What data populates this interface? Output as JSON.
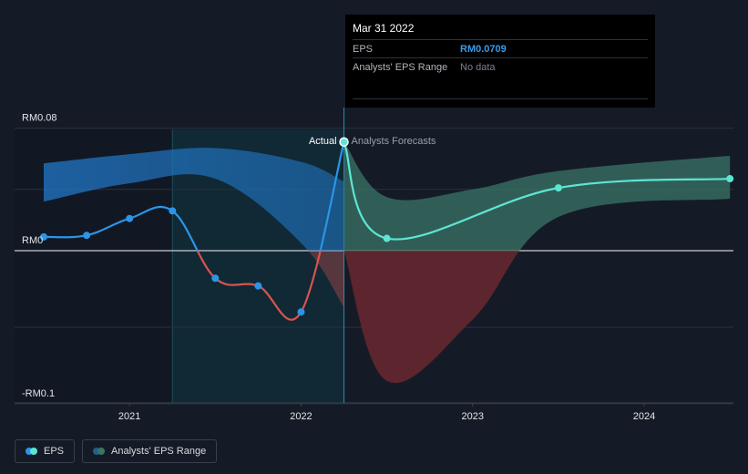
{
  "colors": {
    "background": "#151b26",
    "eps_actual": "#2b95e8",
    "eps_negative": "#d9534f",
    "eps_forecast": "#5ce6d2",
    "actual_band": "#2178c9",
    "forecast_band_pos": "#3a7568",
    "forecast_band_neg": "#6a2730",
    "past_shade": "#0d4a5a"
  },
  "tooltip": {
    "date": "Mar 31 2022",
    "rows": [
      {
        "label": "EPS",
        "value": "RM0.0709"
      },
      {
        "label": "Analysts' EPS Range",
        "value": "No data"
      }
    ]
  },
  "legend": [
    {
      "label": "EPS",
      "icon": "eps-dots-icon"
    },
    {
      "label": "Analysts' EPS Range",
      "icon": "range-dots-icon"
    }
  ],
  "chart_data": {
    "type": "line",
    "y_unit": "RM",
    "yticks": [
      {
        "value": 0.08,
        "label": "RM0.08"
      },
      {
        "value": 0,
        "label": "RM0"
      },
      {
        "value": -0.1,
        "label": "-RM0.1"
      }
    ],
    "xticks": [
      {
        "value": 2021,
        "label": "2021"
      },
      {
        "value": 2022,
        "label": "2022"
      },
      {
        "value": 2023,
        "label": "2023"
      },
      {
        "value": 2024,
        "label": "2024"
      }
    ],
    "xlim": [
      2020.35,
      2024.5
    ],
    "ylim": [
      -0.1,
      0.08
    ],
    "grid": true,
    "divider_x": 2022.25,
    "highlight_start": 2021.25,
    "labels": {
      "actual": "Actual",
      "forecast": "Analysts Forecasts"
    },
    "series": [
      {
        "name": "EPS",
        "kind": "actual",
        "x": [
          2020.5,
          2020.75,
          2021.0,
          2021.25,
          2021.5,
          2021.75,
          2022.0,
          2022.25
        ],
        "y": [
          0.009,
          0.01,
          0.021,
          0.026,
          -0.018,
          -0.023,
          -0.04,
          0.071
        ]
      },
      {
        "name": "EPS",
        "kind": "forecast",
        "x": [
          2022.25,
          2022.5,
          2023.5,
          2024.5
        ],
        "y": [
          0.071,
          0.008,
          0.041,
          0.047
        ]
      }
    ],
    "bands": [
      {
        "kind": "actual",
        "x": [
          2020.5,
          2021.0,
          2021.5,
          2022.0,
          2022.25
        ],
        "upper": [
          0.057,
          0.063,
          0.067,
          0.058,
          0.045
        ],
        "lower": [
          0.032,
          0.044,
          0.047,
          0.005,
          -0.037
        ]
      },
      {
        "kind": "forecast",
        "x": [
          2022.25,
          2022.5,
          2023.0,
          2023.5,
          2024.5
        ],
        "upper": [
          0.071,
          0.035,
          0.04,
          0.052,
          0.062
        ],
        "lower": [
          0.0,
          -0.085,
          -0.045,
          0.022,
          0.034
        ]
      }
    ]
  }
}
